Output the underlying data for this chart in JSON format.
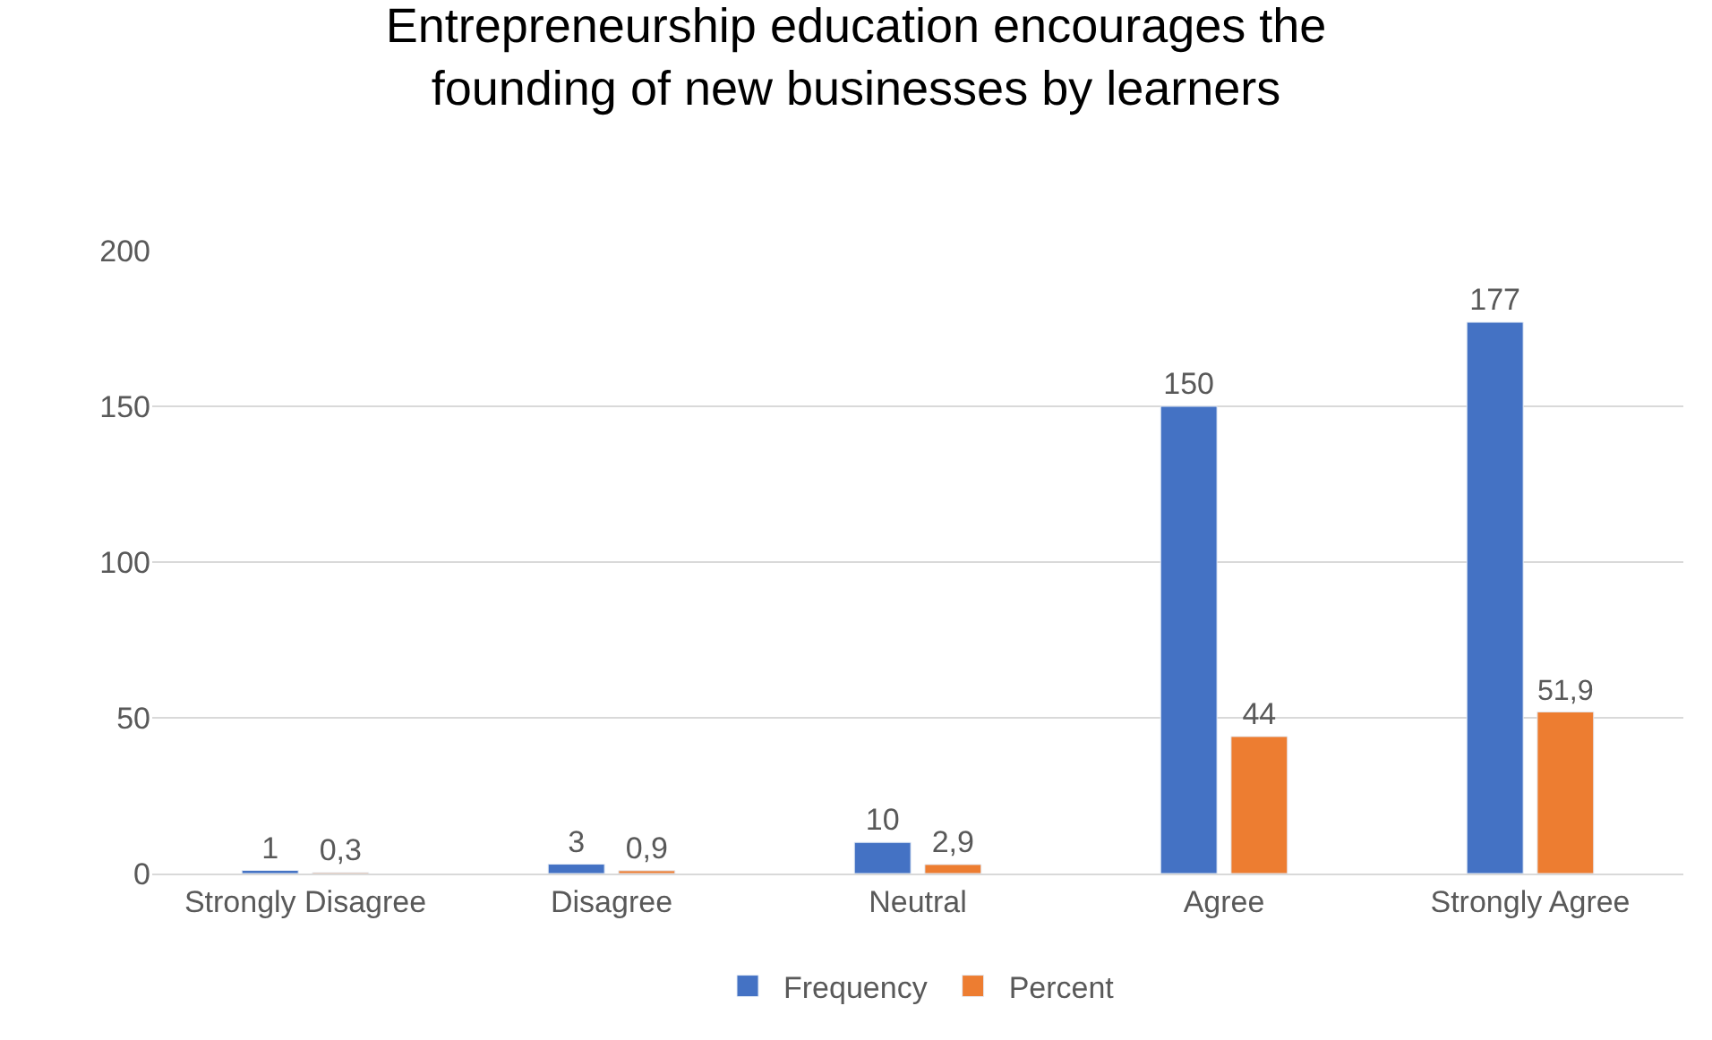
{
  "chart_data": {
    "type": "bar",
    "title": "Entrepreneurship education encourages the\nfounding of new businesses by learners",
    "categories": [
      "Strongly Disagree",
      "Disagree",
      "Neutral",
      "Agree",
      "Strongly Agree"
    ],
    "series": [
      {
        "name": "Frequency",
        "color": "#4472c4",
        "values": [
          1,
          3,
          10,
          150,
          177
        ],
        "value_labels": [
          "1",
          "3",
          "10",
          "150",
          "177"
        ]
      },
      {
        "name": "Percent",
        "color": "#ed7d31",
        "values": [
          0.3,
          0.9,
          2.9,
          44,
          51.9
        ],
        "value_labels": [
          "0,3",
          "0,9",
          "2,9",
          "44",
          "51,9"
        ]
      }
    ],
    "ylim": [
      0,
      200
    ],
    "yticks": [
      0,
      50,
      100,
      150,
      200
    ],
    "grid": "y",
    "legend": "bottom"
  }
}
